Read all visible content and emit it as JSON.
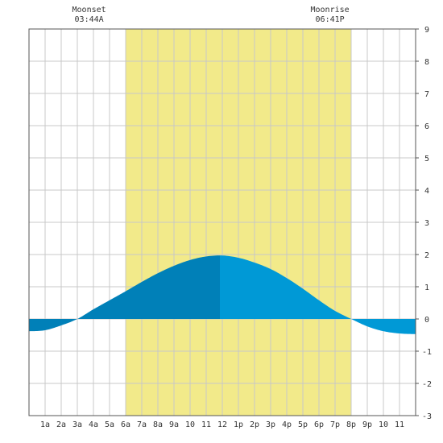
{
  "chart_data": {
    "type": "area",
    "title": "",
    "xlabel": "",
    "ylabel": "",
    "x_tick_labels": [
      "1a",
      "2a",
      "3a",
      "4a",
      "5a",
      "6a",
      "7a",
      "8a",
      "9a",
      "10",
      "11",
      "12",
      "1p",
      "2p",
      "3p",
      "4p",
      "5p",
      "6p",
      "7p",
      "8p",
      "9p",
      "10",
      "11"
    ],
    "xlim_hours": [
      0,
      24
    ],
    "ylim": [
      -3,
      9
    ],
    "y_ticks": [
      9,
      8,
      7,
      6,
      5,
      4,
      3,
      2,
      1,
      0,
      -1,
      -2,
      -3
    ],
    "grid": true,
    "moon_visible_window": {
      "start": "06:00",
      "end": "20:00",
      "color": "#f2ea8a"
    },
    "series": [
      {
        "x_hours": [
          0,
          1,
          2,
          3,
          4,
          5,
          6,
          7,
          8,
          9,
          10,
          11,
          12,
          13,
          14,
          15,
          16,
          17,
          18,
          19,
          20,
          21,
          22,
          23,
          24
        ],
        "values": [
          -0.38,
          -0.35,
          -0.2,
          0.0,
          0.3,
          0.58,
          0.86,
          1.15,
          1.42,
          1.65,
          1.83,
          1.94,
          1.97,
          1.9,
          1.75,
          1.55,
          1.27,
          0.94,
          0.58,
          0.25,
          0.0,
          -0.23,
          -0.38,
          -0.45,
          -0.47
        ]
      }
    ],
    "colors": {
      "fill_dark": "#0080b8",
      "fill_light": "#0099d6",
      "grid": "#c8c8c8",
      "frame": "#555555"
    },
    "annotations": [
      {
        "title": "Moonset",
        "time": "03:44A",
        "x_hours": 3.73
      },
      {
        "title": "Moonrise",
        "time": "06:41P",
        "x_hours": 18.68
      }
    ]
  }
}
